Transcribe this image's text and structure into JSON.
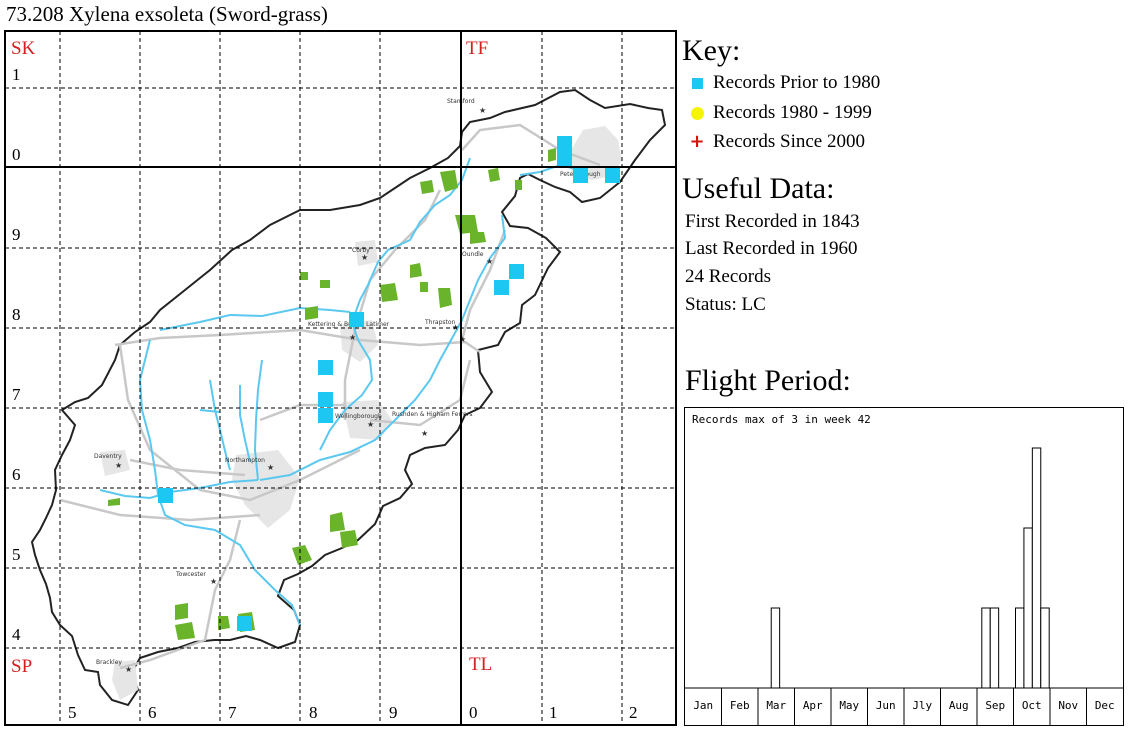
{
  "title": "73.208 Xylena exsoleta (Sword-grass)",
  "map": {
    "squares": [
      "SK",
      "TF",
      "SP",
      "TL"
    ],
    "x_labels": [
      "5",
      "6",
      "7",
      "8",
      "9",
      "0",
      "1",
      "2"
    ],
    "y_labels": [
      "1",
      "0",
      "9",
      "8",
      "7",
      "6",
      "5",
      "4"
    ],
    "towns": [
      "Stamford",
      "Peterborough",
      "Corby",
      "Oundle",
      "Kettering & Burton Latimer",
      "Thrapston",
      "Wellingborough",
      "Rushden & Higham Ferrers",
      "Daventry",
      "Northampton",
      "Towcester",
      "Brackley"
    ],
    "colors": {
      "grid_dashed": "#000000",
      "county_border": "#222222",
      "rivers": "#5bc8f0",
      "roads": "#c8c8c8",
      "urban": "#e6e6e6",
      "woodland": "#6ab42c",
      "record_marker": "#1cc7f2",
      "square_label": "#d42020"
    }
  },
  "key": {
    "heading": "Key:",
    "items": [
      {
        "label": "Records Prior to 1980",
        "color": "#1cc7f2",
        "shape": "square"
      },
      {
        "label": "Records 1980 - 1999",
        "color": "#f5f500",
        "shape": "circle"
      },
      {
        "label": "Records Since 2000",
        "color": "#e01010",
        "shape": "plus"
      }
    ]
  },
  "useful": {
    "heading": "Useful Data:",
    "first": "First Recorded in 1843",
    "last": "Last Recorded in 1960",
    "count": "24 Records",
    "status": "Status: LC"
  },
  "flight": {
    "heading": "Flight Period:",
    "note": "Records max of 3 in week 42",
    "max": 3,
    "months": [
      "Jan",
      "Feb",
      "Mar",
      "Apr",
      "May",
      "Jun",
      "Jly",
      "Aug",
      "Sep",
      "Oct",
      "Nov",
      "Dec"
    ],
    "weeks": [
      {
        "week": 11,
        "count": 1
      },
      {
        "week": 36,
        "count": 1
      },
      {
        "week": 37,
        "count": 1
      },
      {
        "week": 40,
        "count": 1
      },
      {
        "week": 41,
        "count": 2
      },
      {
        "week": 42,
        "count": 3
      },
      {
        "week": 43,
        "count": 1
      }
    ]
  }
}
